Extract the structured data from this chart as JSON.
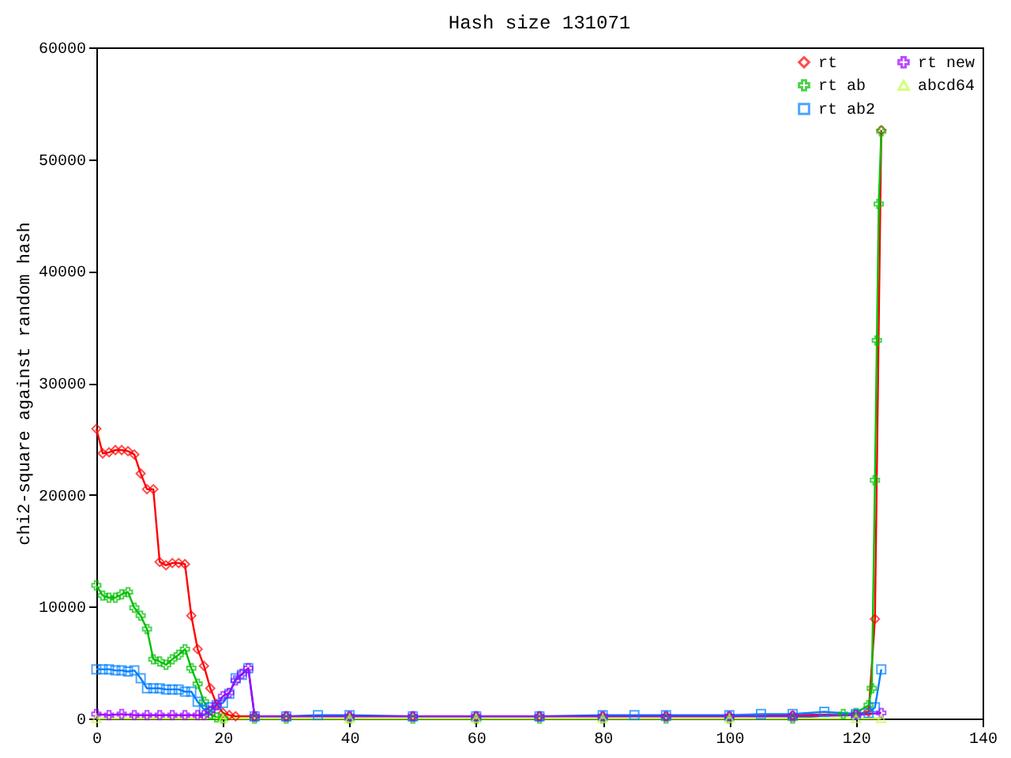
{
  "chart_data": {
    "type": "line",
    "title": "Hash size 131071",
    "ylabel": "chi2-square against random hash",
    "xlim": [
      0,
      140
    ],
    "xticks": [
      0,
      20,
      40,
      60,
      80,
      100,
      120,
      140
    ],
    "ylim": [
      0,
      60000
    ],
    "yticks": [
      0,
      10000,
      20000,
      30000,
      40000,
      50000,
      60000
    ],
    "grid": false,
    "legend": "top right",
    "line_style": "solid",
    "series": [
      {
        "name": "rt",
        "color": "#ff0000",
        "marker": "diamond",
        "x": [
          0,
          1,
          2,
          3,
          4,
          5,
          6,
          7,
          8,
          9,
          10,
          11,
          12,
          13,
          14,
          15,
          16,
          17,
          18,
          19,
          20,
          21,
          22,
          25,
          30,
          40,
          50,
          60,
          70,
          80,
          90,
          100,
          110,
          120,
          122,
          123,
          124
        ],
        "values": [
          25900,
          23700,
          23800,
          24000,
          24000,
          23900,
          23600,
          21900,
          20500,
          20500,
          14000,
          13700,
          13900,
          13900,
          13800,
          9200,
          6200,
          4700,
          2700,
          1300,
          500,
          300,
          200,
          200,
          200,
          200,
          200,
          200,
          200,
          200,
          200,
          200,
          300,
          400,
          600,
          8900,
          52600
        ]
      },
      {
        "name": "rt ab",
        "color": "#00c000",
        "marker": "cross",
        "x": [
          0,
          1,
          2,
          3,
          4,
          5,
          6,
          7,
          8,
          9,
          10,
          11,
          12,
          13,
          14,
          15,
          16,
          17,
          18,
          19,
          20,
          25,
          30,
          40,
          50,
          60,
          70,
          80,
          90,
          100,
          110,
          118,
          120,
          122,
          122.5,
          123,
          123.3,
          123.6,
          124
        ],
        "values": [
          11900,
          11000,
          10800,
          10800,
          11100,
          11300,
          9900,
          9200,
          8000,
          5300,
          5100,
          4800,
          5300,
          5700,
          6200,
          4500,
          3100,
          1500,
          400,
          100,
          0,
          0,
          0,
          0,
          0,
          0,
          0,
          0,
          0,
          0,
          0,
          400,
          500,
          1200,
          2700,
          21300,
          33800,
          46000,
          52500
        ]
      },
      {
        "name": "rt ab2",
        "color": "#0080ff",
        "marker": "square",
        "x": [
          0,
          1,
          2,
          3,
          4,
          5,
          6,
          7,
          8,
          9,
          10,
          11,
          12,
          13,
          14,
          15,
          16,
          17,
          18,
          19,
          20,
          21,
          22,
          23,
          24,
          25,
          30,
          35,
          40,
          50,
          60,
          70,
          80,
          85,
          90,
          100,
          105,
          110,
          115,
          120,
          122,
          123,
          124
        ],
        "values": [
          4400,
          4400,
          4400,
          4300,
          4300,
          4200,
          4300,
          3600,
          2700,
          2700,
          2700,
          2600,
          2600,
          2600,
          2400,
          2400,
          1500,
          800,
          1000,
          1200,
          1400,
          2200,
          3600,
          3900,
          4500,
          200,
          200,
          300,
          300,
          200,
          200,
          200,
          300,
          300,
          300,
          300,
          400,
          400,
          600,
          400,
          500,
          1000,
          4400
        ]
      },
      {
        "name": "rt new",
        "color": "#a000ff",
        "marker": "cross",
        "x": [
          0,
          2,
          4,
          6,
          8,
          10,
          12,
          14,
          16,
          17,
          18,
          19,
          20,
          21,
          22,
          23,
          24,
          25,
          30,
          40,
          50,
          60,
          70,
          80,
          90,
          100,
          110,
          120,
          124
        ],
        "values": [
          400,
          300,
          400,
          300,
          300,
          300,
          300,
          300,
          300,
          300,
          700,
          1200,
          2000,
          2300,
          3400,
          4000,
          4500,
          200,
          200,
          200,
          200,
          200,
          200,
          200,
          200,
          200,
          200,
          300,
          500
        ]
      },
      {
        "name": "abcd64",
        "color": "#c0ff40",
        "marker": "triangle",
        "x": [
          0,
          20,
          40,
          60,
          80,
          100,
          120,
          124
        ],
        "values": [
          0,
          0,
          0,
          0,
          0,
          0,
          0,
          0
        ]
      }
    ]
  }
}
